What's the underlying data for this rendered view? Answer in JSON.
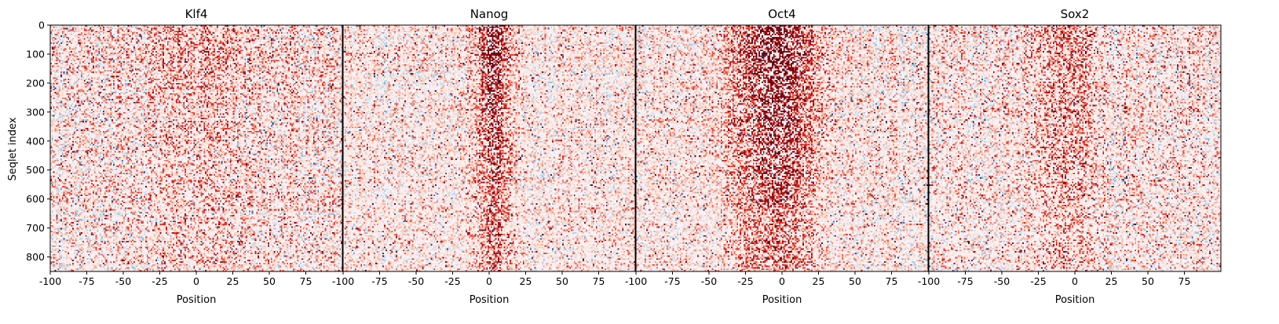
{
  "chart_data": {
    "type": "heatmap",
    "colormap": "RdBu_r",
    "colors": {
      "positive": "#b40426",
      "neutral": "#fff5f5",
      "negative": "#3b5f9a",
      "frame": "#000000"
    },
    "shared_y": true,
    "ylabel": "Seqlet index",
    "ylim": [
      850,
      0
    ],
    "yticks": [
      0,
      100,
      200,
      300,
      400,
      500,
      600,
      700,
      800
    ],
    "rows": 850,
    "x_range": [
      -100,
      99
    ],
    "panels": [
      {
        "title": "Klf4",
        "xlabel": "Position",
        "xticks": [
          "-100",
          "-75",
          "-50",
          "-25",
          "0",
          "25",
          "50",
          "75"
        ],
        "pattern": {
          "bias": 0.55,
          "center": 0,
          "width": 40,
          "strength": 0.25,
          "noise": 0.9
        }
      },
      {
        "title": "Nanog",
        "xlabel": "Position",
        "xticks": [
          "-100",
          "-75",
          "-50",
          "-25",
          "0",
          "25",
          "50",
          "75"
        ],
        "pattern": {
          "bias": 0.45,
          "center": 2,
          "width": 12,
          "strength": 0.9,
          "noise": 0.7
        }
      },
      {
        "title": "Oct4",
        "xlabel": "Position",
        "xticks": [
          "-100",
          "-75",
          "-50",
          "-25",
          "0",
          "25",
          "50",
          "75"
        ],
        "pattern": {
          "bias": 0.5,
          "center": -5,
          "width": 28,
          "strength": 1.0,
          "noise": 0.75
        }
      },
      {
        "title": "Sox2",
        "xlabel": "Position",
        "xticks": [
          "-100",
          "-75",
          "-50",
          "-25",
          "0",
          "25",
          "50",
          "75"
        ],
        "pattern": {
          "bias": 0.35,
          "center": -5,
          "width": 20,
          "strength": 0.5,
          "noise": 0.85
        }
      }
    ]
  }
}
